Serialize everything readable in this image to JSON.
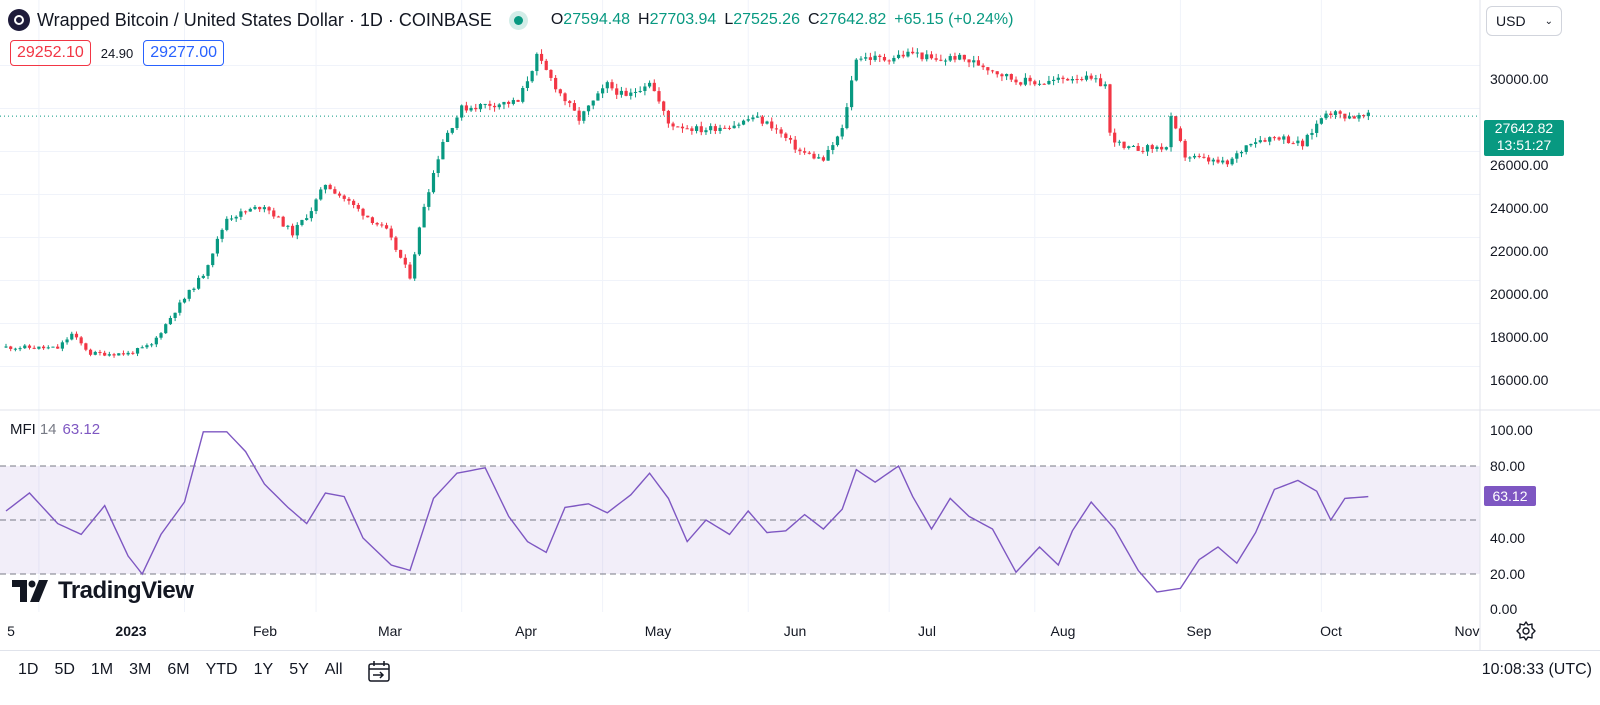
{
  "symbol": {
    "title": "Wrapped Bitcoin / United States Dollar · 1D · COINBASE",
    "ohlc": [
      {
        "label": "O",
        "value": "27594.48"
      },
      {
        "label": "H",
        "value": "27703.94"
      },
      {
        "label": "L",
        "value": "27525.26"
      },
      {
        "label": "C",
        "value": "27642.82"
      }
    ],
    "change": "+65.15 (+0.24%)",
    "bid": "29252.10",
    "spread": "24.90",
    "ask": "29277.00"
  },
  "currency": {
    "label": "USD"
  },
  "price_axis": [
    "30000.00",
    "28000.00",
    "26000.00",
    "24000.00",
    "22000.00",
    "20000.00",
    "18000.00",
    "16000.00"
  ],
  "last_price": {
    "value": "27642.82",
    "countdown": "13:51:27"
  },
  "mfi": {
    "name": "MFI",
    "length": "14",
    "value": "63.12",
    "axis": [
      "100.00",
      "80.00",
      "60.00",
      "40.00",
      "20.00",
      "0.00"
    ]
  },
  "time_axis": [
    "5",
    "2023",
    "Feb",
    "Mar",
    "Apr",
    "May",
    "Jun",
    "Jul",
    "Aug",
    "Sep",
    "Oct",
    "Nov"
  ],
  "ranges": [
    "1D",
    "5D",
    "1M",
    "3M",
    "6M",
    "YTD",
    "1Y",
    "5Y",
    "All"
  ],
  "clock": "10:08:33 (UTC)",
  "branding": {
    "logo_text": "TradingView"
  },
  "colors": {
    "up": "#089981",
    "down": "#f23645",
    "mfi": "#7e57c2"
  },
  "chart_data": {
    "type": "candlestick",
    "interval": "1D",
    "x_unit": "date",
    "y_unit": "USD",
    "x_range": [
      "2022-12-25",
      "2023-11-01"
    ],
    "ylim": [
      15000,
      32000
    ],
    "price_anchors": [
      {
        "date": "2022-12-25",
        "close": 16900
      },
      {
        "date": "2023-01-05",
        "close": 16850
      },
      {
        "date": "2023-01-08",
        "close": 17500
      },
      {
        "date": "2023-01-12",
        "close": 16600
      },
      {
        "date": "2023-01-20",
        "close": 16600
      },
      {
        "date": "2023-01-25",
        "close": 17000
      },
      {
        "date": "2023-01-30",
        "close": 18600
      },
      {
        "date": "2023-02-05",
        "close": 20300
      },
      {
        "date": "2023-02-10",
        "close": 22900
      },
      {
        "date": "2023-02-18",
        "close": 23500
      },
      {
        "date": "2023-02-24",
        "close": 22200
      },
      {
        "date": "2023-02-28",
        "close": 23300
      },
      {
        "date": "2023-03-03",
        "close": 24500
      },
      {
        "date": "2023-03-10",
        "close": 23300
      },
      {
        "date": "2023-03-16",
        "close": 22300
      },
      {
        "date": "2023-03-21",
        "close": 20200
      },
      {
        "date": "2023-03-24",
        "close": 23500
      },
      {
        "date": "2023-03-28",
        "close": 26500
      },
      {
        "date": "2023-04-01",
        "close": 28000
      },
      {
        "date": "2023-04-07",
        "close": 28200
      },
      {
        "date": "2023-04-13",
        "close": 28300
      },
      {
        "date": "2023-04-17",
        "close": 30400
      },
      {
        "date": "2023-04-22",
        "close": 28700
      },
      {
        "date": "2023-04-26",
        "close": 27500
      },
      {
        "date": "2023-05-02",
        "close": 29100
      },
      {
        "date": "2023-05-06",
        "close": 28500
      },
      {
        "date": "2023-05-11",
        "close": 29300
      },
      {
        "date": "2023-05-15",
        "close": 27300
      },
      {
        "date": "2023-05-22",
        "close": 27000
      },
      {
        "date": "2023-05-30",
        "close": 27300
      },
      {
        "date": "2023-06-02",
        "close": 27600
      },
      {
        "date": "2023-06-06",
        "close": 27200
      },
      {
        "date": "2023-06-12",
        "close": 26000
      },
      {
        "date": "2023-06-17",
        "close": 25600
      },
      {
        "date": "2023-06-21",
        "close": 27000
      },
      {
        "date": "2023-06-24",
        "close": 30400
      },
      {
        "date": "2023-06-30",
        "close": 30300
      },
      {
        "date": "2023-07-06",
        "close": 30600
      },
      {
        "date": "2023-07-11",
        "close": 30200
      },
      {
        "date": "2023-07-15",
        "close": 30400
      },
      {
        "date": "2023-07-21",
        "close": 30000
      },
      {
        "date": "2023-07-28",
        "close": 29300
      },
      {
        "date": "2023-08-03",
        "close": 29200
      },
      {
        "date": "2023-08-10",
        "close": 29500
      },
      {
        "date": "2023-08-16",
        "close": 29100
      },
      {
        "date": "2023-08-17",
        "close": 26800
      },
      {
        "date": "2023-08-20",
        "close": 26100
      },
      {
        "date": "2023-08-29",
        "close": 26200
      },
      {
        "date": "2023-08-30",
        "close": 27500
      },
      {
        "date": "2023-09-02",
        "close": 25800
      },
      {
        "date": "2023-09-11",
        "close": 25400
      },
      {
        "date": "2023-09-16",
        "close": 26500
      },
      {
        "date": "2023-09-22",
        "close": 26700
      },
      {
        "date": "2023-09-27",
        "close": 26300
      },
      {
        "date": "2023-10-02",
        "close": 27900
      },
      {
        "date": "2023-10-05",
        "close": 27700
      },
      {
        "date": "2023-10-09",
        "close": 27600
      },
      {
        "date": "2023-10-11",
        "close": 27643
      }
    ],
    "mfi_anchors": [
      {
        "date": "2022-12-25",
        "value": 55
      },
      {
        "date": "2022-12-30",
        "value": 65
      },
      {
        "date": "2023-01-05",
        "value": 48
      },
      {
        "date": "2023-01-10",
        "value": 42
      },
      {
        "date": "2023-01-15",
        "value": 58
      },
      {
        "date": "2023-01-20",
        "value": 30
      },
      {
        "date": "2023-01-23",
        "value": 20
      },
      {
        "date": "2023-01-27",
        "value": 42
      },
      {
        "date": "2023-02-01",
        "value": 60
      },
      {
        "date": "2023-02-05",
        "value": 99
      },
      {
        "date": "2023-02-10",
        "value": 99
      },
      {
        "date": "2023-02-14",
        "value": 88
      },
      {
        "date": "2023-02-18",
        "value": 70
      },
      {
        "date": "2023-02-23",
        "value": 57
      },
      {
        "date": "2023-02-27",
        "value": 48
      },
      {
        "date": "2023-03-03",
        "value": 65
      },
      {
        "date": "2023-03-07",
        "value": 63
      },
      {
        "date": "2023-03-11",
        "value": 40
      },
      {
        "date": "2023-03-17",
        "value": 25
      },
      {
        "date": "2023-03-21",
        "value": 22
      },
      {
        "date": "2023-03-26",
        "value": 62
      },
      {
        "date": "2023-03-31",
        "value": 76
      },
      {
        "date": "2023-04-06",
        "value": 79
      },
      {
        "date": "2023-04-11",
        "value": 52
      },
      {
        "date": "2023-04-15",
        "value": 38
      },
      {
        "date": "2023-04-19",
        "value": 32
      },
      {
        "date": "2023-04-23",
        "value": 57
      },
      {
        "date": "2023-04-28",
        "value": 59
      },
      {
        "date": "2023-05-02",
        "value": 54
      },
      {
        "date": "2023-05-07",
        "value": 64
      },
      {
        "date": "2023-05-11",
        "value": 76
      },
      {
        "date": "2023-05-15",
        "value": 62
      },
      {
        "date": "2023-05-19",
        "value": 38
      },
      {
        "date": "2023-05-23",
        "value": 50
      },
      {
        "date": "2023-05-28",
        "value": 42
      },
      {
        "date": "2023-06-01",
        "value": 55
      },
      {
        "date": "2023-06-05",
        "value": 43
      },
      {
        "date": "2023-06-09",
        "value": 44
      },
      {
        "date": "2023-06-13",
        "value": 53
      },
      {
        "date": "2023-06-17",
        "value": 45
      },
      {
        "date": "2023-06-21",
        "value": 56
      },
      {
        "date": "2023-06-24",
        "value": 78
      },
      {
        "date": "2023-06-28",
        "value": 71
      },
      {
        "date": "2023-07-03",
        "value": 80
      },
      {
        "date": "2023-07-06",
        "value": 63
      },
      {
        "date": "2023-07-10",
        "value": 45
      },
      {
        "date": "2023-07-14",
        "value": 62
      },
      {
        "date": "2023-07-18",
        "value": 52
      },
      {
        "date": "2023-07-23",
        "value": 45
      },
      {
        "date": "2023-07-28",
        "value": 21
      },
      {
        "date": "2023-08-02",
        "value": 35
      },
      {
        "date": "2023-08-06",
        "value": 25
      },
      {
        "date": "2023-08-09",
        "value": 44
      },
      {
        "date": "2023-08-13",
        "value": 60
      },
      {
        "date": "2023-08-18",
        "value": 45
      },
      {
        "date": "2023-08-23",
        "value": 22
      },
      {
        "date": "2023-08-27",
        "value": 10
      },
      {
        "date": "2023-09-01",
        "value": 12
      },
      {
        "date": "2023-09-05",
        "value": 28
      },
      {
        "date": "2023-09-09",
        "value": 35
      },
      {
        "date": "2023-09-13",
        "value": 26
      },
      {
        "date": "2023-09-17",
        "value": 43
      },
      {
        "date": "2023-09-21",
        "value": 67
      },
      {
        "date": "2023-09-26",
        "value": 72
      },
      {
        "date": "2023-09-30",
        "value": 66
      },
      {
        "date": "2023-10-03",
        "value": 50
      },
      {
        "date": "2023-10-06",
        "value": 62
      },
      {
        "date": "2023-10-11",
        "value": 63
      }
    ]
  }
}
